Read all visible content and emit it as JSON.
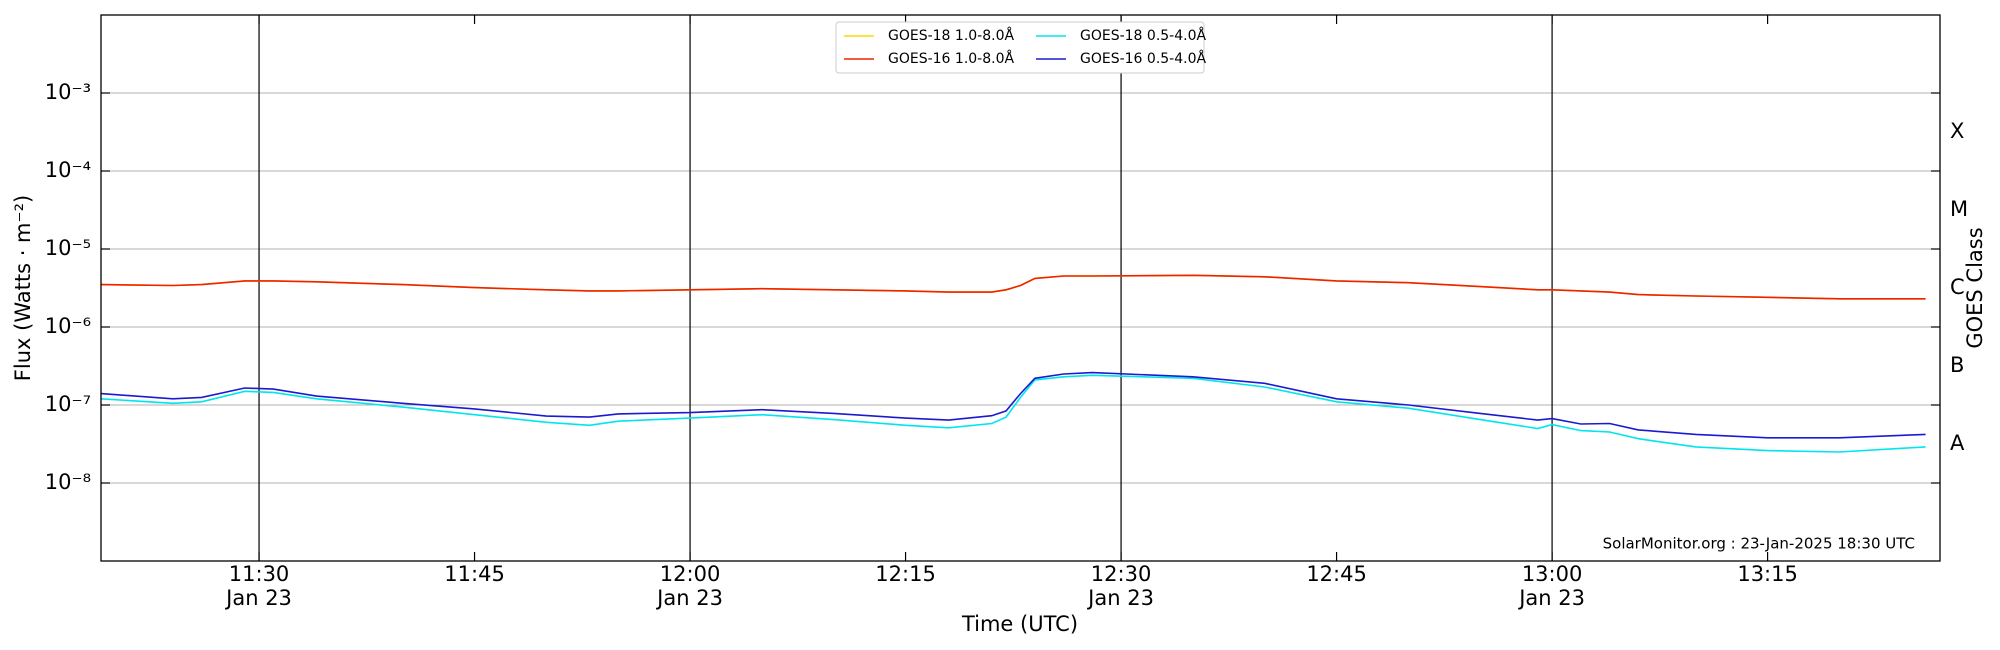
{
  "chart_data": {
    "type": "line",
    "x_label": "Time (UTC)",
    "y_label": "Flux (Watts · m⁻²)",
    "y2_label": "GOES Class",
    "annotation": "SolarMonitor.org : 23-Jan-2025 18:30 UTC",
    "log_y": true,
    "grid": true,
    "legend_position": "top",
    "xlim": [
      "11:19",
      "13:27"
    ],
    "xticks": [
      {
        "value": "11:30",
        "label": "11:30",
        "sublabel": "Jan 23"
      },
      {
        "value": "11:45",
        "label": "11:45"
      },
      {
        "value": "12:00",
        "label": "12:00",
        "sublabel": "Jan 23"
      },
      {
        "value": "12:15",
        "label": "12:15"
      },
      {
        "value": "12:30",
        "label": "12:30",
        "sublabel": "Jan 23"
      },
      {
        "value": "12:45",
        "label": "12:45"
      },
      {
        "value": "13:00",
        "label": "13:00",
        "sublabel": "Jan 23"
      },
      {
        "value": "13:15",
        "label": "13:15"
      }
    ],
    "ylim": [
      1e-09,
      0.01
    ],
    "yticks": [
      {
        "value": 1e-08,
        "label": "10⁻⁸"
      },
      {
        "value": 1e-07,
        "label": "10⁻⁷"
      },
      {
        "value": 1e-06,
        "label": "10⁻⁶"
      },
      {
        "value": 1e-05,
        "label": "10⁻⁵"
      },
      {
        "value": 0.0001,
        "label": "10⁻⁴"
      },
      {
        "value": 0.001,
        "label": "10⁻³"
      }
    ],
    "y2lim": [
      1e-09,
      0.01
    ],
    "y2ticks": [
      {
        "value": 3.16e-08,
        "label": "A"
      },
      {
        "value": 3.16e-07,
        "label": "B"
      },
      {
        "value": 3.16e-06,
        "label": "C"
      },
      {
        "value": 3.16e-05,
        "label": "M"
      },
      {
        "value": 0.000316,
        "label": "X"
      }
    ],
    "x": [
      "11:19",
      "11:24",
      "11:26",
      "11:29",
      "11:31",
      "11:34",
      "11:40",
      "11:45",
      "11:50",
      "11:53",
      "11:55",
      "12:00",
      "12:05",
      "12:10",
      "12:15",
      "12:18",
      "12:21",
      "12:22",
      "12:23",
      "12:24",
      "12:26",
      "12:28",
      "12:35",
      "12:40",
      "12:45",
      "12:50",
      "12:55",
      "12:59",
      "13:00",
      "13:02",
      "13:04",
      "13:06",
      "13:10",
      "13:15",
      "13:20",
      "13:26"
    ],
    "series": [
      {
        "name": "GOES-18 1.0-8.0Å",
        "color": "#ffd700",
        "values": [
          3.5e-06,
          3.4e-06,
          3.5e-06,
          3.9e-06,
          3.9e-06,
          3.8e-06,
          3.5e-06,
          3.2e-06,
          3e-06,
          2.9e-06,
          2.9e-06,
          3e-06,
          3.1e-06,
          3e-06,
          2.9e-06,
          2.8e-06,
          2.8e-06,
          3e-06,
          3.4e-06,
          4.2e-06,
          4.5e-06,
          4.5e-06,
          4.6e-06,
          4.4e-06,
          3.9e-06,
          3.7e-06,
          3.3e-06,
          3e-06,
          3e-06,
          2.9e-06,
          2.8e-06,
          2.6e-06,
          2.5e-06,
          2.4e-06,
          2.3e-06,
          2.3e-06
        ]
      },
      {
        "name": "GOES-16 1.0-8.0Å",
        "color": "#ee2200",
        "values": [
          3.5e-06,
          3.4e-06,
          3.5e-06,
          3.9e-06,
          3.9e-06,
          3.8e-06,
          3.5e-06,
          3.2e-06,
          3e-06,
          2.9e-06,
          2.9e-06,
          3e-06,
          3.1e-06,
          3e-06,
          2.9e-06,
          2.8e-06,
          2.8e-06,
          3e-06,
          3.4e-06,
          4.2e-06,
          4.5e-06,
          4.5e-06,
          4.6e-06,
          4.4e-06,
          3.9e-06,
          3.7e-06,
          3.3e-06,
          3e-06,
          3e-06,
          2.9e-06,
          2.8e-06,
          2.6e-06,
          2.5e-06,
          2.4e-06,
          2.3e-06,
          2.3e-06
        ]
      },
      {
        "name": "GOES-18 0.5-4.0Å",
        "color": "#00e5ee",
        "values": [
          1.2e-07,
          1.05e-07,
          1.1e-07,
          1.5e-07,
          1.45e-07,
          1.2e-07,
          9.4e-08,
          7.5e-08,
          6e-08,
          5.5e-08,
          6.2e-08,
          6.8e-08,
          7.5e-08,
          6.5e-08,
          5.5e-08,
          5.1e-08,
          5.8e-08,
          7e-08,
          1.25e-07,
          2.1e-07,
          2.3e-07,
          2.4e-07,
          2.2e-07,
          1.7e-07,
          1.1e-07,
          9.1e-08,
          6.5e-08,
          5e-08,
          5.6e-08,
          4.7e-08,
          4.5e-08,
          3.7e-08,
          2.9e-08,
          2.6e-08,
          2.5e-08,
          2.9e-08
        ]
      },
      {
        "name": "GOES-16 0.5-4.0Å",
        "color": "#1a1ad0",
        "values": [
          1.4e-07,
          1.2e-07,
          1.25e-07,
          1.65e-07,
          1.6e-07,
          1.3e-07,
          1.05e-07,
          8.9e-08,
          7.2e-08,
          7e-08,
          7.7e-08,
          8e-08,
          8.7e-08,
          7.8e-08,
          6.8e-08,
          6.4e-08,
          7.3e-08,
          8.4e-08,
          1.4e-07,
          2.2e-07,
          2.5e-07,
          2.6e-07,
          2.3e-07,
          1.9e-07,
          1.2e-07,
          1e-07,
          7.8e-08,
          6.4e-08,
          6.7e-08,
          5.7e-08,
          5.8e-08,
          4.8e-08,
          4.2e-08,
          3.8e-08,
          3.8e-08,
          4.2e-08
        ]
      }
    ]
  }
}
